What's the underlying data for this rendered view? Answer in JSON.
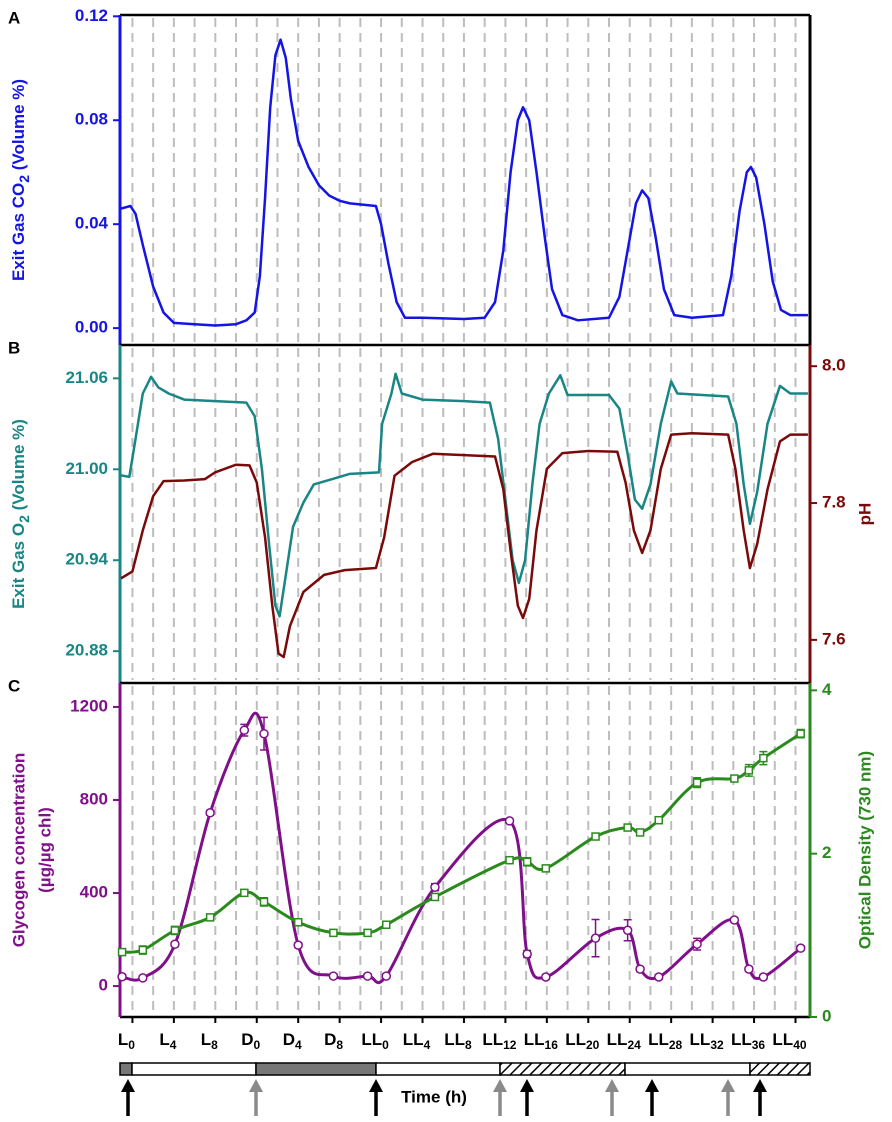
{
  "chart_data": [
    {
      "type": "line",
      "panel_label": "A",
      "ylabel_parts": [
        "Exit Gas CO",
        "2",
        " (Volume %)"
      ],
      "xlim": [
        -1.2,
        65.4
      ],
      "xgrid": [
        0,
        2,
        4,
        6,
        8,
        10,
        12,
        14,
        16,
        18,
        20,
        22,
        24,
        26,
        28,
        30,
        32,
        34,
        36,
        38,
        40,
        42,
        44,
        46,
        48,
        50,
        52,
        54,
        56,
        58,
        60,
        62,
        64
      ],
      "ylim": [
        -0.0065,
        0.1205
      ],
      "yticks": [
        {
          "value": 0,
          "label": "0.00"
        },
        0.04,
        0.08,
        0.12
      ],
      "series": [
        {
          "color": "#1414e6",
          "x": [
            -1.1,
            -0.2,
            0.3,
            1,
            2,
            3,
            4,
            6,
            8,
            10,
            11,
            11.8,
            12.3,
            12.8,
            13.3,
            13.8,
            14.3,
            14.8,
            15.3,
            16,
            17,
            18,
            19,
            20,
            21,
            23.5,
            24,
            24.7,
            25.5,
            26.3,
            28,
            32,
            34,
            35,
            35.8,
            36.5,
            37.2,
            37.7,
            38.3,
            39,
            39.8,
            40.5,
            41.5,
            43,
            46,
            47,
            47.8,
            48.6,
            49.2,
            49.8,
            50.5,
            51.3,
            52.3,
            54,
            57,
            57.8,
            58.6,
            59.3,
            59.7,
            60.2,
            61,
            61.8,
            62.6,
            63.5,
            65.2
          ],
          "values": [
            0.046,
            0.047,
            0.044,
            0.032,
            0.016,
            0.006,
            0.002,
            0.0015,
            0.001,
            0.0015,
            0.003,
            0.006,
            0.02,
            0.05,
            0.085,
            0.105,
            0.111,
            0.104,
            0.088,
            0.072,
            0.062,
            0.055,
            0.051,
            0.049,
            0.048,
            0.047,
            0.04,
            0.025,
            0.01,
            0.004,
            0.004,
            0.0035,
            0.004,
            0.01,
            0.03,
            0.06,
            0.08,
            0.085,
            0.08,
            0.06,
            0.035,
            0.015,
            0.005,
            0.003,
            0.004,
            0.012,
            0.03,
            0.048,
            0.053,
            0.05,
            0.035,
            0.015,
            0.005,
            0.004,
            0.005,
            0.02,
            0.045,
            0.06,
            0.062,
            0.058,
            0.04,
            0.018,
            0.007,
            0.005,
            0.005
          ]
        }
      ]
    },
    {
      "type": "line",
      "panel_label": "B",
      "ylabel_parts": [
        "Exit Gas O",
        "2",
        " (Volume %)"
      ],
      "y2label": "pH",
      "xlim": [
        -1.2,
        65.4
      ],
      "xgrid": [
        0,
        2,
        4,
        6,
        8,
        10,
        12,
        14,
        16,
        18,
        20,
        22,
        24,
        26,
        28,
        30,
        32,
        34,
        36,
        38,
        40,
        42,
        44,
        46,
        48,
        50,
        52,
        54,
        56,
        58,
        60,
        62,
        64
      ],
      "ylim": [
        20.859,
        21.082
      ],
      "yticks": [
        20.88,
        20.94,
        {
          "value": 21,
          "label": "21.00"
        },
        21.06
      ],
      "y2lim": [
        7.537,
        8.031
      ],
      "y2ticks": [
        7.6,
        7.8,
        {
          "value": 8,
          "label": "8.0"
        }
      ],
      "series": [
        {
          "color": "#1a8585",
          "x": [
            -1.1,
            -0.3,
            0.3,
            1,
            1.8,
            2.5,
            3.5,
            5,
            8,
            11,
            11.8,
            12.5,
            13.2,
            13.8,
            14.2,
            14.8,
            15.5,
            16.5,
            17.5,
            19,
            21,
            23.8,
            24.1,
            25,
            25.4,
            26,
            28,
            32,
            34.5,
            35.3,
            36,
            36.7,
            37.3,
            37.9,
            38.6,
            39.3,
            40.2,
            41.3,
            42,
            44,
            46,
            47,
            47.8,
            48.5,
            49.2,
            50,
            51,
            52,
            52.6,
            55,
            57.5,
            58.3,
            59,
            59.6,
            60.3,
            61.3,
            62.5,
            63.5,
            65.2
          ],
          "values": [
            20.996,
            20.995,
            21.02,
            21.05,
            21.061,
            21.054,
            21.05,
            21.046,
            21.045,
            21.044,
            21.035,
            21.0,
            20.95,
            20.91,
            20.903,
            20.93,
            20.962,
            20.978,
            20.99,
            20.993,
            20.997,
            20.998,
            21.03,
            21.05,
            21.063,
            21.05,
            21.046,
            21.045,
            21.044,
            21.02,
            20.98,
            20.94,
            20.925,
            20.94,
            20.99,
            21.03,
            21.05,
            21.062,
            21.049,
            21.049,
            21.049,
            21.04,
            21.01,
            20.98,
            20.974,
            20.99,
            21.03,
            21.058,
            21.05,
            21.049,
            21.048,
            21.03,
            20.99,
            20.964,
            20.985,
            21.03,
            21.055,
            21.05,
            21.05
          ]
        },
        {
          "color": "#7a0a0a",
          "axis": "y2",
          "x": [
            -1.1,
            0,
            1,
            2,
            3,
            5,
            7,
            8,
            10,
            11.3,
            12,
            12.8,
            13.5,
            14.1,
            14.6,
            15.2,
            16.5,
            18.5,
            20.5,
            23.5,
            24.3,
            25.3,
            27,
            29,
            32,
            35,
            35.8,
            36.5,
            37.2,
            37.7,
            38.3,
            39,
            40,
            41.5,
            44,
            46.8,
            47.6,
            48.4,
            49.2,
            50,
            51,
            52,
            54,
            57.5,
            58.2,
            59,
            59.6,
            60.3,
            61.3,
            62.5,
            63.5,
            65.2
          ],
          "values": [
            7.69,
            7.7,
            7.76,
            7.81,
            7.832,
            7.833,
            7.835,
            7.845,
            7.856,
            7.855,
            7.83,
            7.75,
            7.65,
            7.58,
            7.575,
            7.62,
            7.67,
            7.695,
            7.702,
            7.705,
            7.75,
            7.84,
            7.86,
            7.872,
            7.87,
            7.868,
            7.82,
            7.73,
            7.65,
            7.632,
            7.66,
            7.76,
            7.85,
            7.873,
            7.876,
            7.875,
            7.83,
            7.76,
            7.727,
            7.76,
            7.85,
            7.9,
            7.902,
            7.9,
            7.85,
            7.76,
            7.705,
            7.74,
            7.82,
            7.89,
            7.9,
            7.9
          ]
        }
      ]
    },
    {
      "type": "errorbar",
      "panel_label": "C",
      "ylabel_lines": [
        "Glycogen concentration",
        "(µg/µg chl)"
      ],
      "y2label": "Optical Density (730 nm)",
      "xlabel": "Time (h)",
      "xlim": [
        -1.2,
        65.4
      ],
      "xgrid": [
        0,
        2,
        4,
        6,
        8,
        10,
        12,
        14,
        16,
        18,
        20,
        22,
        24,
        26,
        28,
        30,
        32,
        34,
        36,
        38,
        40,
        42,
        44,
        46,
        48,
        50,
        52,
        54,
        56,
        58,
        60,
        62,
        64
      ],
      "xticks": [
        {
          "value": 0,
          "label": "L",
          "sub": "0"
        },
        {
          "value": 4,
          "label": "L",
          "sub": "4"
        },
        {
          "value": 8,
          "label": "L",
          "sub": "8"
        },
        {
          "value": 12,
          "label": "D",
          "sub": "0"
        },
        {
          "value": 16,
          "label": "D",
          "sub": "4"
        },
        {
          "value": 20,
          "label": "D",
          "sub": "8"
        },
        {
          "value": 24,
          "label": "LL",
          "sub": "0"
        },
        {
          "value": 28,
          "label": "LL",
          "sub": "4"
        },
        {
          "value": 32,
          "label": "LL",
          "sub": "8"
        },
        {
          "value": 36,
          "label": "LL",
          "sub": "12"
        },
        {
          "value": 40,
          "label": "LL",
          "sub": "16"
        },
        {
          "value": 44,
          "label": "LL",
          "sub": "20"
        },
        {
          "value": 48,
          "label": "LL",
          "sub": "24"
        },
        {
          "value": 52,
          "label": "LL",
          "sub": "28"
        },
        {
          "value": 56,
          "label": "LL",
          "sub": "32"
        },
        {
          "value": 60,
          "label": "LL",
          "sub": "36"
        },
        {
          "value": 64,
          "label": "LL",
          "sub": "40"
        }
      ],
      "ylim": [
        -133,
        1303
      ],
      "yticks": [
        0,
        400,
        800,
        1200
      ],
      "y2lim": [
        0,
        4.09
      ],
      "y2ticks": [
        0,
        2,
        4
      ],
      "x": [
        -1,
        1,
        4.1,
        7.5,
        10.8,
        12.7,
        16,
        19.4,
        22.7,
        24.5,
        29.2,
        36.4,
        38.1,
        39.9,
        44.7,
        47.8,
        49,
        50.8,
        54.5,
        58.1,
        59.5,
        60.9,
        64.5
      ],
      "series": [
        {
          "color": "#80108a",
          "marker": "circle",
          "values": [
            40,
            35,
            180,
            745,
            1100,
            1085,
            176,
            43,
            43,
            43,
            425,
            710,
            138,
            39,
            206,
            240,
            73,
            39,
            180,
            284,
            73,
            39,
            163
          ],
          "errors": [
            10,
            10,
            10,
            10,
            25,
            70,
            10,
            10,
            10,
            10,
            15,
            10,
            15,
            10,
            80,
            45,
            10,
            10,
            25,
            10,
            10,
            10,
            10
          ]
        },
        {
          "color": "#2a8a1e",
          "marker": "square",
          "axis": "y2",
          "values": [
            0.795,
            0.82,
            1.06,
            1.22,
            1.52,
            1.41,
            1.16,
            1.03,
            1.03,
            1.13,
            1.47,
            1.92,
            1.9,
            1.82,
            2.21,
            2.32,
            2.26,
            2.41,
            2.87,
            2.92,
            3.02,
            3.17,
            3.47
          ],
          "errors": [
            0.04,
            0.05,
            0.05,
            0.03,
            0.04,
            0.05,
            0.03,
            0.04,
            0.04,
            0.04,
            0.04,
            0.02,
            0.05,
            0.03,
            0.02,
            0.02,
            0.02,
            0.04,
            0.06,
            0.02,
            0.07,
            0.08,
            0.05
          ]
        }
      ]
    }
  ]
}
